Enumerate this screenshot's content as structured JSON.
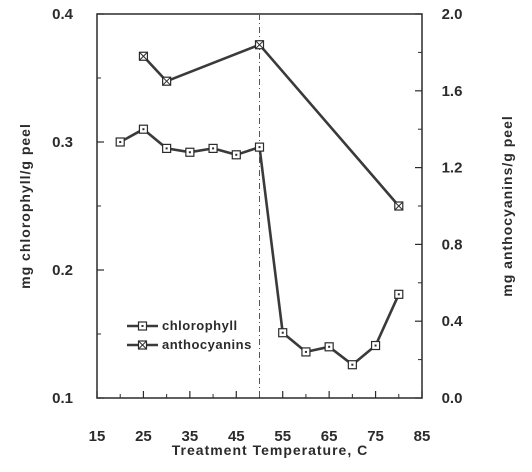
{
  "chart_data": {
    "type": "line",
    "xlabel": "Treatment Temperature, C",
    "ylabel": "mg chlorophyll/g peel",
    "y2label": "mg anthocyanins/g peel",
    "xlim": [
      15,
      85
    ],
    "ylim": [
      0.1,
      0.4
    ],
    "y2lim": [
      0.0,
      2.0
    ],
    "x_ticks": [
      "15",
      "25",
      "35",
      "45",
      "55",
      "65",
      "75",
      "85"
    ],
    "y_ticks": [
      "0.1",
      "0.2",
      "0.3",
      "0.4"
    ],
    "y2_ticks": [
      "0.0",
      "0.4",
      "0.8",
      "1.2",
      "1.6",
      "2.0"
    ],
    "reference_line_x": 50,
    "legend_position": "lower-left",
    "grid": false,
    "series": [
      {
        "name": "chlorophyll",
        "axis": "left",
        "marker": "square-dot",
        "x": [
          20,
          25,
          30,
          35,
          40,
          45,
          50,
          55,
          60,
          65,
          70,
          75,
          80
        ],
        "values": [
          0.3,
          0.31,
          0.295,
          0.292,
          0.295,
          0.29,
          0.296,
          0.151,
          0.136,
          0.14,
          0.126,
          0.141,
          0.181
        ]
      },
      {
        "name": "anthocyanins",
        "axis": "right",
        "marker": "square-x",
        "x": [
          25,
          30,
          50,
          80
        ],
        "values": [
          1.78,
          1.65,
          1.84,
          1.0
        ]
      }
    ],
    "line_color": "#3a3a3a"
  }
}
